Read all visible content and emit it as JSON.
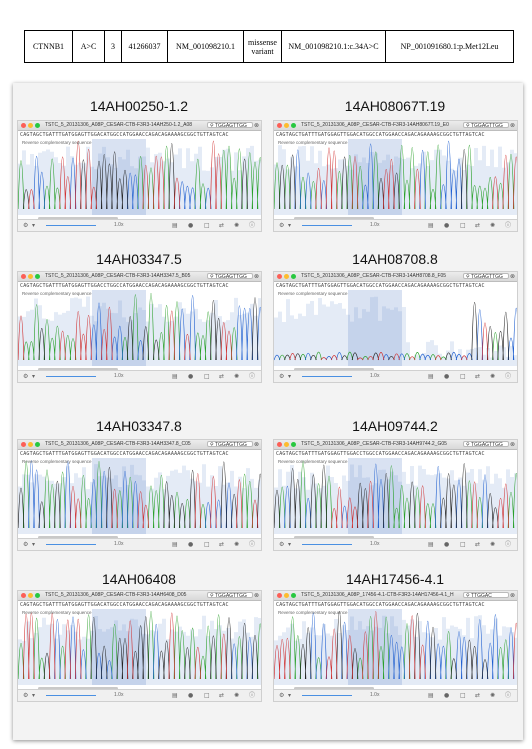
{
  "variant_table": [
    "CTNNB1",
    "A>C",
    "3",
    "41266037",
    "NM_001098210.1",
    "missense variant",
    "NM_001098210.1:c.34A>C",
    "NP_001091680.1:p.Met12Leu"
  ],
  "toolbar": {
    "zoom": "1.0x"
  },
  "panels": [
    {
      "label": "14AH00250-1.2",
      "title": "TSTC_5_20131306_A08P_CESAR-CTB-F3R3-14AH250-1.2_A08",
      "search": "TGGAGTTGG",
      "sequence": "CAGTAGCTGATTTGATGGAGTTGGACATGGCCATGGAACCAGACAGAAAAGCGGCTGTTAGTCAC",
      "reverse_label": "Reverse complementary sequence",
      "noisy": false
    },
    {
      "label": "14AH08067T.19",
      "title": "TSTC_5_20131306_A08P_CESAR-CTB-F3R3-14AH8067T.19_E0",
      "search": "TGGAGTTGG",
      "sequence": "CAGTAGCTGATTTGATGGAGTTGGACATGGCCATGGAACCAGACAGAAAAGCGGCTGTTAGTCAC",
      "reverse_label": "Reverse complementary sequence",
      "noisy": false
    },
    {
      "label": "14AH03347.5",
      "title": "TSTC_5_20131306_A08P_CESAR-CTB-F3R3-14AH3347.5_B05",
      "search": "TGGAGTTGG",
      "sequence": "CAGTAGCTGATTTGATGGAGTTGGACCTGGCCATGGAACCAGACAGAAAAGCGGCTGTTAGTCAC",
      "reverse_label": "Reverse complementary sequence",
      "noisy": false
    },
    {
      "label": "14AH08708.8",
      "title": "TSTC_5_20131306_A08P_CESAR-CTB-F3R3-14AH8708.8_F05",
      "search": "TGGAGTTGG",
      "sequence": "CAGTAGCTGATTTGATGGAGTTGGACATGGCCATGGAACCAGACAGAAAAGCGGCTGTTAGTCAC",
      "reverse_label": "Reverse complementary sequence",
      "noisy": true
    },
    {
      "label": "14AH03347.8",
      "title": "TSTC_5_20131306_A08P_CESAR-CTB-F3R3-14AH3347.8_C05",
      "search": "TGGAGTTGG",
      "sequence": "CAGTAGCTGATTTGATGGAGTTGGACATGGCCATGGAACCAGACAGAAAAGCGGCTGTTAGTCAC",
      "reverse_label": "Reverse complementary sequence",
      "noisy": false
    },
    {
      "label": "14AH09744.2",
      "title": "TSTC_5_20131306_A08P_CESAR-CTB-F3R3-14AH9744.2_G05",
      "search": "TGGAGTTGG",
      "sequence": "CAGTAGCTGATTTGATGGAGTTGGACCTGGCCATGGAACCAGACAGAAAAGCGGCTGTTAGTCAC",
      "reverse_label": "Reverse complementary sequence",
      "noisy": false
    },
    {
      "label": "14AH06408",
      "title": "TSTC_5_20131306_A08P_CESAR-CTB-F3R3-14AH6408_D05",
      "search": "TGGAGTTGG",
      "sequence": "CAGTAGCTGATTTGATGGAGTTGGACATGGCCATGGAACCAGACAGAAAAGCGGCTGTTAGTCAC",
      "reverse_label": "Reverse complementary sequence",
      "noisy": false
    },
    {
      "label": "14AH17456-4.1",
      "title": "TSTC_5_20131306_A08P_17456-4.1-CTB-F3R3-14AH17456-4.1_H",
      "search": "TTGGAC",
      "sequence": "CAGTAGCTGATTTGATGGAGTTGGACATGGCCATGGAACCAGACAGAAAAGCGGCTGTTAGTCAC",
      "reverse_label": "Reverse complementary sequence",
      "noisy": false
    }
  ]
}
